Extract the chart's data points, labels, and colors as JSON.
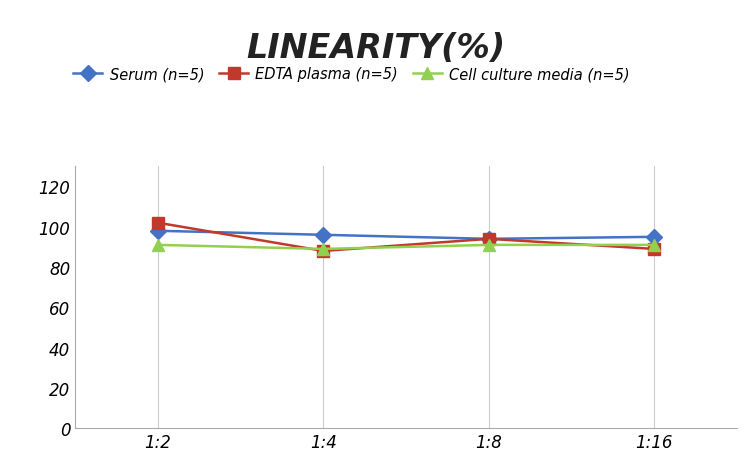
{
  "title": "LINEARITY(%)",
  "x_labels": [
    "1:2",
    "1:4",
    "1:8",
    "1:16"
  ],
  "x_positions": [
    0,
    1,
    2,
    3
  ],
  "series": [
    {
      "label": "Serum (n=5)",
      "values": [
        98,
        96,
        94,
        95
      ],
      "color": "#4472C4",
      "marker": "D",
      "linestyle": "-",
      "linewidth": 1.8
    },
    {
      "label": "EDTA plasma (n=5)",
      "values": [
        102,
        88,
        94,
        89
      ],
      "color": "#C0392B",
      "marker": "s",
      "linestyle": "-",
      "linewidth": 1.8
    },
    {
      "label": "Cell culture media (n=5)",
      "values": [
        91,
        89,
        91,
        91
      ],
      "color": "#92D050",
      "marker": "^",
      "linestyle": "-",
      "linewidth": 1.8
    }
  ],
  "ylim": [
    0,
    130
  ],
  "yticks": [
    0,
    20,
    40,
    60,
    80,
    100,
    120
  ],
  "background_color": "#ffffff",
  "title_fontsize": 24,
  "legend_fontsize": 10.5,
  "tick_fontsize": 12,
  "grid_color": "#cccccc",
  "grid_linewidth": 0.8,
  "markersize": 8
}
